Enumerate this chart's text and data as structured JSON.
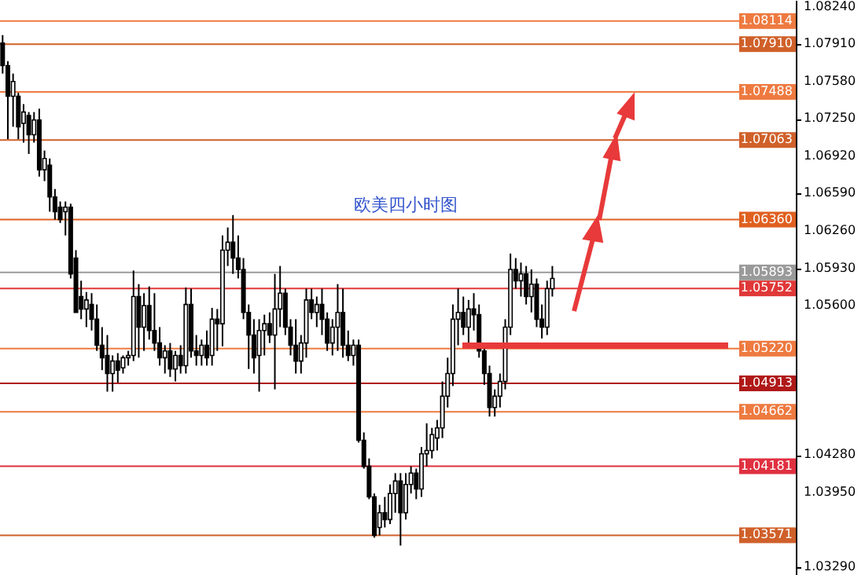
{
  "chart_data": {
    "type": "candlestick",
    "annotations": [
      "欧美四小时图"
    ],
    "color": "#000000",
    "categories": [
      null,
      null,
      null,
      null,
      null,
      null,
      null,
      null,
      null,
      null,
      null,
      null,
      null,
      null,
      null,
      null,
      null,
      null,
      null,
      null,
      null,
      null,
      null,
      null,
      null,
      null,
      null,
      null,
      null,
      null,
      null,
      null,
      null,
      null,
      null,
      null,
      null,
      null,
      null,
      null,
      null,
      null,
      null,
      null,
      null,
      null,
      null,
      null,
      null,
      null,
      null,
      null,
      null,
      null,
      null,
      null,
      null,
      null,
      null,
      null,
      null,
      null,
      null,
      null,
      null,
      null,
      null,
      null,
      null,
      null,
      null,
      null,
      null,
      null,
      null,
      null,
      null,
      null,
      null,
      null,
      null,
      null,
      null,
      null,
      null,
      null,
      null,
      null,
      null,
      null,
      null,
      null,
      null,
      null,
      null,
      null,
      null,
      null,
      null,
      null,
      null,
      null,
      null,
      null,
      null,
      null,
      null,
      null,
      null,
      null,
      null,
      null,
      null,
      null,
      null,
      null,
      null,
      null,
      null,
      null,
      null,
      null,
      null,
      null,
      null,
      null,
      null,
      null,
      null,
      null,
      null,
      null,
      null,
      null,
      null,
      null,
      null,
      null,
      null,
      null,
      null,
      null,
      null,
      null,
      null,
      null,
      null,
      null,
      null,
      null,
      null,
      null
    ],
    "ohlc": [
      [
        1.0792,
        1.0799,
        1.0765,
        1.0772
      ],
      [
        1.0772,
        1.0776,
        1.0707,
        1.0745
      ],
      [
        1.0745,
        1.0765,
        1.0718,
        1.0758
      ],
      [
        1.0745,
        1.0748,
        1.0707,
        1.0718
      ],
      [
        1.0721,
        1.0738,
        1.0704,
        1.0731
      ],
      [
        1.0728,
        1.0731,
        1.0694,
        1.0711
      ],
      [
        1.0711,
        1.0731,
        1.0704,
        1.0724
      ],
      [
        1.0724,
        1.0734,
        1.0674,
        1.068
      ],
      [
        1.068,
        1.0697,
        1.067,
        1.069
      ],
      [
        1.0684,
        1.069,
        1.0643,
        1.0656
      ],
      [
        1.0656,
        1.0663,
        1.0636,
        1.0643
      ],
      [
        1.0647,
        1.0652,
        1.0633,
        1.0636
      ],
      [
        1.0643,
        1.0652,
        1.0622,
        1.0647
      ],
      [
        1.0647,
        1.065,
        1.0584,
        1.0588
      ],
      [
        1.0602,
        1.0609,
        1.0554,
        1.0554
      ],
      [
        1.0568,
        1.0582,
        1.0548,
        1.0557
      ],
      [
        1.0557,
        1.0572,
        1.0541,
        1.0565
      ],
      [
        1.0561,
        1.0571,
        1.0538,
        1.0548
      ],
      [
        1.0548,
        1.0561,
        1.052,
        1.0525
      ],
      [
        1.0525,
        1.0541,
        1.0503,
        1.0514
      ],
      [
        1.0516,
        1.0534,
        1.0484,
        1.05
      ],
      [
        1.05,
        1.0516,
        1.0484,
        1.0511
      ],
      [
        1.0511,
        1.0518,
        1.0492,
        1.0503
      ],
      [
        1.0505,
        1.0516,
        1.05,
        1.0514
      ],
      [
        1.0514,
        1.052,
        1.0507,
        1.0516
      ],
      [
        1.0516,
        1.0591,
        1.0511,
        1.0568
      ],
      [
        1.0568,
        1.0579,
        1.0514,
        1.0541
      ],
      [
        1.0541,
        1.0571,
        1.052,
        1.056
      ],
      [
        1.056,
        1.0577,
        1.053,
        1.0538
      ],
      [
        1.0538,
        1.0571,
        1.052,
        1.0527
      ],
      [
        1.0527,
        1.0541,
        1.0507,
        1.0514
      ],
      [
        1.0514,
        1.0525,
        1.05,
        1.052
      ],
      [
        1.052,
        1.0527,
        1.0497,
        1.0504
      ],
      [
        1.0504,
        1.052,
        1.0493,
        1.0516
      ],
      [
        1.0516,
        1.0525,
        1.05,
        1.0507
      ],
      [
        1.0507,
        1.0576,
        1.05,
        1.0561
      ],
      [
        1.0561,
        1.0575,
        1.0514,
        1.052
      ],
      [
        1.052,
        1.0534,
        1.0507,
        1.0516
      ],
      [
        1.0516,
        1.053,
        1.0507,
        1.0525
      ],
      [
        1.0525,
        1.0538,
        1.0507,
        1.0514
      ],
      [
        1.0516,
        1.0558,
        1.0507,
        1.0548
      ],
      [
        1.0548,
        1.0557,
        1.052,
        1.0544
      ],
      [
        1.0544,
        1.0622,
        1.0524,
        1.0609
      ],
      [
        1.0609,
        1.0629,
        1.0595,
        1.0616
      ],
      [
        1.0616,
        1.064,
        1.0588,
        1.0602
      ],
      [
        1.0602,
        1.0622,
        1.0584,
        1.0592
      ],
      [
        1.0592,
        1.0602,
        1.0548,
        1.0554
      ],
      [
        1.0554,
        1.0561,
        1.0504,
        1.0534
      ],
      [
        1.0534,
        1.0548,
        1.05,
        1.0514
      ],
      [
        1.0516,
        1.0548,
        1.0484,
        1.0538
      ],
      [
        1.0538,
        1.0552,
        1.0516,
        1.0544
      ],
      [
        1.0544,
        1.0554,
        1.0527,
        1.0534
      ],
      [
        1.0534,
        1.0588,
        1.0486,
        1.0557
      ],
      [
        1.0557,
        1.0595,
        1.0541,
        1.0571
      ],
      [
        1.0571,
        1.0575,
        1.0534,
        1.0541
      ],
      [
        1.0541,
        1.0548,
        1.0516,
        1.0525
      ],
      [
        1.0525,
        1.0548,
        1.05,
        1.0511
      ],
      [
        1.0511,
        1.0534,
        1.05,
        1.0527
      ],
      [
        1.0527,
        1.0575,
        1.0514,
        1.0565
      ],
      [
        1.0565,
        1.0575,
        1.0548,
        1.0554
      ],
      [
        1.0554,
        1.0568,
        1.0541,
        1.0561
      ],
      [
        1.0561,
        1.0575,
        1.0534,
        1.0548
      ],
      [
        1.0548,
        1.0554,
        1.052,
        1.0527
      ],
      [
        1.0527,
        1.0548,
        1.0516,
        1.0541
      ],
      [
        1.0541,
        1.0579,
        1.052,
        1.0554
      ],
      [
        1.0554,
        1.0575,
        1.0514,
        1.0525
      ],
      [
        1.0525,
        1.0538,
        1.0511,
        1.0516
      ],
      [
        1.0516,
        1.053,
        1.0507,
        1.0525
      ],
      [
        1.0525,
        1.053,
        1.0439,
        1.0441
      ],
      [
        1.0441,
        1.0448,
        1.0416,
        1.0418
      ],
      [
        1.0418,
        1.0425,
        1.0389,
        1.0391
      ],
      [
        1.0391,
        1.0394,
        1.0355,
        1.0357
      ],
      [
        1.0364,
        1.0384,
        1.0357,
        1.0377
      ],
      [
        1.0377,
        1.0391,
        1.0364,
        1.0371
      ],
      [
        1.0371,
        1.0402,
        1.0367,
        1.0394
      ],
      [
        1.0394,
        1.0412,
        1.0377,
        1.0405
      ],
      [
        1.0405,
        1.0412,
        1.0348,
        1.0377
      ],
      [
        1.0377,
        1.0412,
        1.0371,
        1.0402
      ],
      [
        1.0402,
        1.0418,
        1.0394,
        1.0412
      ],
      [
        1.0412,
        1.0416,
        1.0389,
        1.0398
      ],
      [
        1.0398,
        1.0435,
        1.0391,
        1.0429
      ],
      [
        1.0429,
        1.0456,
        1.0418,
        1.0432
      ],
      [
        1.0432,
        1.0452,
        1.0425,
        1.0446
      ],
      [
        1.0443,
        1.0459,
        1.0432,
        1.0452
      ],
      [
        1.0452,
        1.0493,
        1.0443,
        1.048
      ],
      [
        1.048,
        1.0514,
        1.047,
        1.05
      ],
      [
        1.05,
        1.0561,
        1.0489,
        1.0548
      ],
      [
        1.0548,
        1.0575,
        1.0525,
        1.0554
      ],
      [
        1.0554,
        1.0568,
        1.0534,
        1.0541
      ],
      [
        1.0541,
        1.0565,
        1.0527,
        1.0557
      ],
      [
        1.0557,
        1.0571,
        1.0538,
        1.0552
      ],
      [
        1.0552,
        1.0561,
        1.0514,
        1.052
      ],
      [
        1.052,
        1.0527,
        1.049,
        1.05
      ],
      [
        1.05,
        1.0507,
        1.0462,
        1.047
      ],
      [
        1.047,
        1.0486,
        1.0462,
        1.048
      ],
      [
        1.048,
        1.05,
        1.047,
        1.0493
      ],
      [
        1.0493,
        1.0548,
        1.0486,
        1.0541
      ],
      [
        1.0541,
        1.0606,
        1.0534,
        1.0592
      ],
      [
        1.0592,
        1.0602,
        1.0575,
        1.0582
      ],
      [
        1.0582,
        1.0598,
        1.0568,
        1.0588
      ],
      [
        1.0588,
        1.0595,
        1.0561,
        1.0568
      ],
      [
        1.0568,
        1.0592,
        1.0554,
        1.0579
      ],
      [
        1.0579,
        1.0584,
        1.0541,
        1.0548
      ],
      [
        1.0548,
        1.0561,
        1.0531,
        1.0541
      ],
      [
        1.0541,
        1.0582,
        1.0534,
        1.0575
      ],
      [
        1.0575,
        1.0595,
        1.0568,
        1.0584
      ],
      null,
      null,
      null,
      null,
      null,
      null,
      null,
      null,
      null,
      null,
      null,
      null,
      null,
      null,
      null,
      null,
      null,
      null,
      null,
      null,
      null,
      null,
      null,
      null,
      null,
      null,
      null,
      null,
      null,
      null,
      null,
      null,
      null,
      null,
      null,
      null,
      null,
      null,
      null,
      null,
      null,
      null,
      null,
      null,
      null,
      null
    ],
    "ylim": [
      1.0322,
      1.083
    ],
    "yticks": [
      {
        "value": 1.0824,
        "label": "1.08240"
      },
      {
        "value": 1.0791,
        "label": "1.07910"
      },
      {
        "value": 1.0758,
        "label": "1.07580"
      },
      {
        "value": 1.0725,
        "label": "1.07250"
      },
      {
        "value": 1.0692,
        "label": "1.06920"
      },
      {
        "value": 1.0659,
        "label": "1.06590"
      },
      {
        "value": 1.0626,
        "label": "1.06260"
      },
      {
        "value": 1.0593,
        "label": "1.05930"
      },
      {
        "value": 1.056,
        "label": "1.05600"
      },
      {
        "value": 1.0428,
        "label": "1.04280"
      },
      {
        "value": 1.0395,
        "label": "1.03950"
      },
      {
        "value": 1.0329,
        "label": "1.03290"
      }
    ],
    "ref_lines": [
      {
        "axis": "y",
        "value": 1.08114,
        "label": "1.08114",
        "color": "#ee7a40"
      },
      {
        "axis": "y",
        "value": 1.0791,
        "label": "1.07910",
        "color": "#d0602a"
      },
      {
        "axis": "y",
        "value": 1.07488,
        "label": "1.07488",
        "color": "#ee7a40"
      },
      {
        "axis": "y",
        "value": 1.07063,
        "label": "1.07063",
        "color": "#d0602a"
      },
      {
        "axis": "y",
        "value": 1.0636,
        "label": "1.06360",
        "color": "#e06020"
      },
      {
        "axis": "y",
        "value": 1.05893,
        "label": "1.05893",
        "color": "#9a9a9a"
      },
      {
        "axis": "y",
        "value": 1.05752,
        "label": "1.05752",
        "color": "#e03838"
      },
      {
        "axis": "y",
        "value": 1.0522,
        "label": "1.05220",
        "color": "#ee7a40"
      },
      {
        "axis": "y",
        "value": 1.04913,
        "label": "1.04913",
        "color": "#b01818"
      },
      {
        "axis": "y",
        "value": 1.04662,
        "label": "1.04662",
        "color": "#ee7a40"
      },
      {
        "axis": "y",
        "value": 1.04181,
        "label": "1.04181",
        "color": "#e03040"
      },
      {
        "axis": "y",
        "value": 1.03571,
        "label": "1.03571",
        "color": "#d0602a"
      }
    ],
    "grid": false
  }
}
